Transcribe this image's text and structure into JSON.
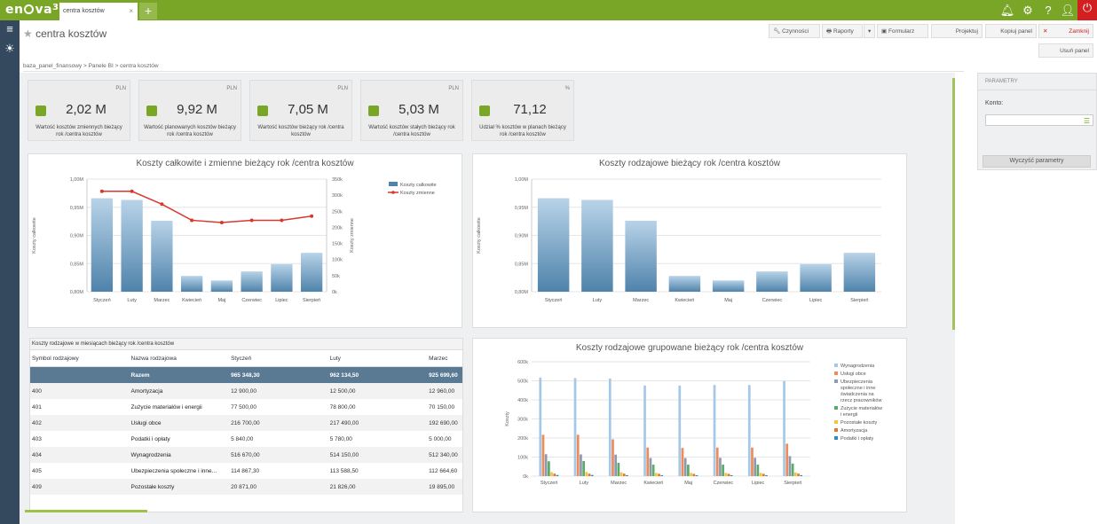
{
  "app": {
    "logo_text": "en",
    "logo_text2": "va",
    "logo_sup": "365",
    "tab_label": "centra kosztów",
    "tab_close": "×",
    "new_tab": "+"
  },
  "header": {
    "title": "centra kosztów"
  },
  "toolbar": {
    "czynnosci": "Czynności",
    "raporty": "Raporty",
    "formularz": "Formularz",
    "projektuj": "Projektuj",
    "kopiuj": "Kopiuj panel",
    "zamknij": "Zamknij",
    "usun": "Usuń panel"
  },
  "breadcrumb": [
    "baza_panel_finansowy",
    ">",
    "Panele BI",
    ">",
    "centra kosztów"
  ],
  "kpis": [
    {
      "currency": "PLN",
      "value": "2,02 M",
      "label": "Wartość kosztów zmiennych bieżący rok /centra kosztów"
    },
    {
      "currency": "PLN",
      "value": "9,92 M",
      "label": "Wartość planowanych kosztów bieżący rok /centra kosztów"
    },
    {
      "currency": "PLN",
      "value": "7,05 M",
      "label": "Wartość kosztów bieżący rok /centra kosztów"
    },
    {
      "currency": "PLN",
      "value": "5,03 M",
      "label": "Wartość kosztów stałych bieżący rok /centra kosztów"
    },
    {
      "currency": "%",
      "value": "71,12",
      "label": "Udział % kosztów w planach bieżący rok /centra kosztów"
    }
  ],
  "params": {
    "header": "PARAMETRY",
    "konto": "Konto:",
    "clear": "Wyczyść parametry"
  },
  "chart_data": [
    {
      "type": "bar",
      "title": "Koszty całkowite i zmienne bieżący rok /centra kosztów",
      "categories": [
        "Styczeń",
        "Luty",
        "Marzec",
        "Kwiecień",
        "Maj",
        "Czerwiec",
        "Lipiec",
        "Sierpień"
      ],
      "ylabel": "Koszty całkowite",
      "y2label": "Koszty zmienne",
      "yticks": [
        "0,80M",
        "0,85M",
        "0,90M",
        "0,95M",
        "1,00M"
      ],
      "ylim": [
        0.8,
        1.0
      ],
      "y2ticks": [
        "0k",
        "50k",
        "100k",
        "150k",
        "200k",
        "250k",
        "300k",
        "350k"
      ],
      "y2lim": [
        0,
        350
      ],
      "series": [
        {
          "name": "Koszty całkowite",
          "kind": "bar",
          "values": [
            0.966,
            0.963,
            0.926,
            0.828,
            0.82,
            0.836,
            0.849,
            0.869
          ]
        },
        {
          "name": "Koszty zmienne",
          "kind": "line",
          "color": "#d9382e",
          "values": [
            312,
            312,
            272,
            222,
            215,
            222,
            222,
            235
          ]
        }
      ],
      "legend": "top-right"
    },
    {
      "type": "bar",
      "title": "Koszty rodzajowe bieżący rok /centra kosztów",
      "categories": [
        "Styczeń",
        "Luty",
        "Marzec",
        "Kwiecień",
        "Maj",
        "Czerwiec",
        "Lipiec",
        "Sierpień"
      ],
      "ylabel": "Koszty całkowite",
      "yticks": [
        "0,80M",
        "0,85M",
        "0,90M",
        "0,95M",
        "1,00M"
      ],
      "ylim": [
        0.8,
        1.0
      ],
      "series": [
        {
          "name": "",
          "values": [
            0.966,
            0.963,
            0.926,
            0.828,
            0.82,
            0.836,
            0.849,
            0.869
          ]
        }
      ]
    },
    {
      "type": "bar",
      "title": "Koszty rodzajowe grupowane bieżący rok /centra kosztów",
      "categories": [
        "Styczeń",
        "Luty",
        "Marzec",
        "Kwiecień",
        "Maj",
        "Czerwiec",
        "Lipiec",
        "Sierpień"
      ],
      "ylabel": "Koszty",
      "yticks": [
        "0k",
        "100k",
        "200k",
        "300k",
        "400k",
        "500k",
        "600k"
      ],
      "ylim": [
        0,
        600
      ],
      "series": [
        {
          "name": "Wynagrodzenia",
          "color": "#a3c8e8",
          "values": [
            517,
            514,
            512,
            475,
            475,
            478,
            478,
            498
          ]
        },
        {
          "name": "Usługi obce",
          "color": "#f08a5a",
          "values": [
            217,
            217,
            193,
            150,
            148,
            150,
            150,
            170
          ]
        },
        {
          "name": "Ubezpieczenia społeczne i inne świadczenia na rzecz pracowników",
          "color": "#8a9bb0",
          "values": [
            115,
            114,
            113,
            95,
            95,
            96,
            96,
            105
          ]
        },
        {
          "name": "Zużycie materiałów i energii",
          "color": "#5aaa68",
          "values": [
            78,
            79,
            70,
            60,
            60,
            60,
            60,
            66
          ]
        },
        {
          "name": "Pozostałe koszty",
          "color": "#f2c53d",
          "values": [
            21,
            22,
            20,
            17,
            17,
            17,
            17,
            19
          ]
        },
        {
          "name": "Amortyzacja",
          "color": "#e8742c",
          "values": [
            13,
            13,
            13,
            12,
            12,
            12,
            12,
            13
          ]
        },
        {
          "name": "Podatki i opłaty",
          "color": "#2f8ac8",
          "values": [
            6,
            6,
            5,
            5,
            5,
            5,
            5,
            5
          ]
        }
      ],
      "legend": "right"
    }
  ],
  "table": {
    "caption": "Koszty rodzajowe w miesiącach bieżący rok /centra kosztów",
    "headers": [
      "Symbol rodzajowy",
      "Nazwa rodzajowa",
      "Styczeń",
      "Luty",
      "Marzec"
    ],
    "rows": [
      [
        "",
        "Razem",
        "965 348,30",
        "962 134,50",
        "925 699,60"
      ],
      [
        "400",
        "Amortyzacja",
        "12 900,00",
        "12 500,00",
        "12 960,00"
      ],
      [
        "401",
        "Zużycie materiałów i energii",
        "77 500,00",
        "78 800,00",
        "70 150,00"
      ],
      [
        "402",
        "Usługi obce",
        "216 700,00",
        "217 490,00",
        "192 690,00"
      ],
      [
        "403",
        "Podatki i opłaty",
        "5 840,00",
        "5 780,00",
        "5 000,00"
      ],
      [
        "404",
        "Wynagrodzenia",
        "516 670,00",
        "514 150,00",
        "512 340,00"
      ],
      [
        "405",
        "Ubezpieczenia społeczne i inne...",
        "114 867,30",
        "113 588,50",
        "112 664,60"
      ],
      [
        "409",
        "Pozostałe koszty",
        "20 871,00",
        "21 826,00",
        "19 895,00"
      ]
    ]
  }
}
